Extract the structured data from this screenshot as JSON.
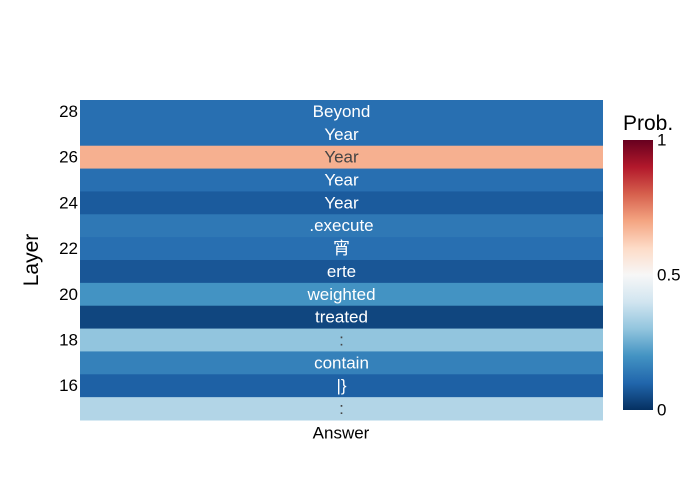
{
  "chart_data": {
    "type": "heatmap",
    "title": "",
    "xlabel": "",
    "ylabel": "Layer",
    "x_categories": [
      "Answer"
    ],
    "layers": [
      28,
      27,
      26,
      25,
      24,
      23,
      22,
      21,
      20,
      19,
      18,
      17,
      16,
      15
    ],
    "tokens": [
      "Beyond",
      "Year",
      "Year",
      "Year",
      "Year",
      ".execute",
      "宵",
      "erte",
      "weighted",
      "treated",
      ":",
      "contain",
      "|}",
      ":"
    ],
    "probs": [
      0.12,
      0.12,
      0.68,
      0.12,
      0.08,
      0.14,
      0.12,
      0.07,
      0.2,
      0.04,
      0.3,
      0.16,
      0.09,
      0.35
    ],
    "y_tick_labels": [
      "28",
      "26",
      "24",
      "22",
      "20",
      "18",
      "16"
    ],
    "colorbar": {
      "title": "Prob.",
      "range": [
        0,
        1
      ],
      "tick_labels": [
        "0",
        "0.5",
        "1"
      ],
      "tick_values": [
        0,
        0.5,
        1
      ],
      "colorscale": [
        "#053061",
        "#2166ac",
        "#4393c3",
        "#92c5de",
        "#d1e5f0",
        "#f7f7f7",
        "#fddbc7",
        "#f4a582",
        "#d6604d",
        "#b2182b",
        "#67001f"
      ]
    }
  }
}
